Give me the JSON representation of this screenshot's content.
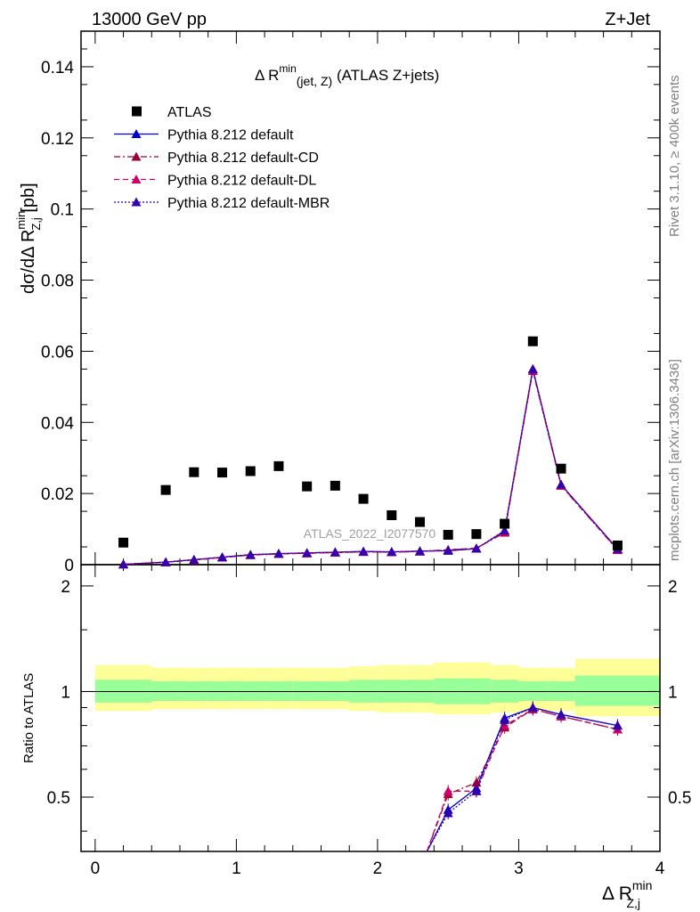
{
  "header": {
    "left": "13000 GeV pp",
    "right": "Z+Jet"
  },
  "side_text": {
    "rivet": "Rivet 3.1.10, ≥ 400k events",
    "mcplots": "mcplots.cern.ch [arXiv:1306.3436]"
  },
  "watermark": "ATLAS_2022_I2077570",
  "main_title": {
    "prefix": "Δ R",
    "sup": "min",
    "sub": "(jet, Z)",
    "suffix": " (ATLAS Z+jets)"
  },
  "ylabel_main": {
    "prefix": "dσ/dΔ R",
    "sup": "min",
    "sub": "Z,j",
    "suffix": " [pb]"
  },
  "ylabel_ratio": "Ratio to ATLAS",
  "xlabel": {
    "prefix": "Δ R",
    "sup": "min",
    "sub": "Z,j"
  },
  "colors": {
    "atlas": "#000000",
    "default": "#0000cc",
    "cd": "#990033",
    "dl": "#cc0066",
    "mbr": "#3300aa",
    "band_outer": "#ffff99",
    "band_inner": "#99ff99"
  },
  "chart_data": [
    {
      "type": "scatter",
      "panel": "main",
      "xlim": [
        -0.1,
        4.0
      ],
      "ylim": [
        0,
        0.15
      ],
      "yticks": [
        0,
        0.02,
        0.04,
        0.06,
        0.08,
        0.1,
        0.12,
        0.14
      ],
      "ytick_labels": [
        "0",
        "0.02",
        "0.04",
        "0.06",
        "0.08",
        "0.1",
        "0.12",
        "0.14"
      ],
      "x": [
        0.2,
        0.5,
        0.7,
        0.9,
        1.1,
        1.3,
        1.5,
        1.7,
        1.9,
        2.1,
        2.3,
        2.5,
        2.7,
        2.9,
        3.1,
        3.3,
        3.7
      ],
      "series": [
        {
          "name": "ATLAS",
          "style": "marker",
          "values": [
            0.0062,
            0.021,
            0.026,
            0.0259,
            0.0263,
            0.0277,
            0.022,
            0.0222,
            0.0185,
            0.0139,
            0.012,
            0.0084,
            0.0086,
            0.0115,
            0.0628,
            0.027,
            0.0054
          ]
        },
        {
          "name": "Pythia 8.212 default",
          "style": "solid",
          "values": [
            0.0001,
            0.0007,
            0.0014,
            0.0021,
            0.0028,
            0.0031,
            0.0033,
            0.0035,
            0.0037,
            0.0036,
            0.0038,
            0.0039,
            0.0045,
            0.0095,
            0.055,
            0.0225,
            0.0044
          ]
        },
        {
          "name": "Pythia 8.212 default-CD",
          "style": "dashdot",
          "values": [
            0.0001,
            0.0007,
            0.0013,
            0.002,
            0.0027,
            0.003,
            0.0032,
            0.0034,
            0.0036,
            0.0035,
            0.0037,
            0.0041,
            0.0046,
            0.009,
            0.0545,
            0.0222,
            0.0041
          ]
        },
        {
          "name": "Pythia 8.212 default-DL",
          "style": "dashed",
          "values": [
            0.0001,
            0.0007,
            0.0013,
            0.002,
            0.0027,
            0.003,
            0.0032,
            0.0034,
            0.0036,
            0.0035,
            0.0037,
            0.0042,
            0.0046,
            0.0092,
            0.0546,
            0.0223,
            0.0042
          ]
        },
        {
          "name": "Pythia 8.212 default-MBR",
          "style": "dotted",
          "values": [
            0.0001,
            0.0007,
            0.0014,
            0.0021,
            0.0028,
            0.0031,
            0.0033,
            0.0035,
            0.0037,
            0.0036,
            0.0038,
            0.004,
            0.0045,
            0.0096,
            0.055,
            0.0225,
            0.0044
          ]
        }
      ]
    },
    {
      "type": "line",
      "panel": "ratio",
      "xlim": [
        -0.1,
        4.0
      ],
      "ylim": [
        0.35,
        2.3
      ],
      "yscale": "log",
      "yticks": [
        0.5,
        1,
        2
      ],
      "ytick_labels": [
        "0.5",
        "1",
        "2"
      ],
      "xticks": [
        0,
        1,
        2,
        3,
        4
      ],
      "xtick_labels": [
        "0",
        "1",
        "2",
        "3",
        "4"
      ],
      "reference": 1,
      "band_edges": [
        0.0,
        0.4,
        0.6,
        0.8,
        1.0,
        1.2,
        1.4,
        1.6,
        1.8,
        2.0,
        2.2,
        2.4,
        2.6,
        2.8,
        3.0,
        3.2,
        3.4,
        4.0
      ],
      "band_outer": [
        [
          0.88,
          1.19
        ],
        [
          0.89,
          1.17
        ],
        [
          0.89,
          1.17
        ],
        [
          0.89,
          1.17
        ],
        [
          0.89,
          1.17
        ],
        [
          0.89,
          1.17
        ],
        [
          0.89,
          1.17
        ],
        [
          0.89,
          1.17
        ],
        [
          0.88,
          1.18
        ],
        [
          0.87,
          1.19
        ],
        [
          0.87,
          1.19
        ],
        [
          0.86,
          1.21
        ],
        [
          0.86,
          1.21
        ],
        [
          0.87,
          1.19
        ],
        [
          0.88,
          1.17
        ],
        [
          0.88,
          1.17
        ],
        [
          0.85,
          1.24
        ]
      ],
      "band_inner": [
        [
          0.93,
          1.08
        ],
        [
          0.94,
          1.07
        ],
        [
          0.94,
          1.07
        ],
        [
          0.94,
          1.07
        ],
        [
          0.94,
          1.07
        ],
        [
          0.94,
          1.07
        ],
        [
          0.94,
          1.07
        ],
        [
          0.94,
          1.07
        ],
        [
          0.93,
          1.08
        ],
        [
          0.93,
          1.08
        ],
        [
          0.93,
          1.08
        ],
        [
          0.92,
          1.09
        ],
        [
          0.92,
          1.09
        ],
        [
          0.93,
          1.08
        ],
        [
          0.94,
          1.07
        ],
        [
          0.94,
          1.07
        ],
        [
          0.91,
          1.11
        ]
      ],
      "x": [
        2.5,
        2.7,
        2.9,
        3.1,
        3.3,
        3.7
      ],
      "series": [
        {
          "name": "Pythia 8.212 default",
          "style": "solid",
          "values": [
            0.46,
            0.53,
            0.84,
            0.9,
            0.86,
            0.8
          ]
        },
        {
          "name": "Pythia 8.212 default-CD",
          "style": "dashdot",
          "values": [
            0.51,
            0.55,
            0.79,
            0.89,
            0.85,
            0.78
          ]
        },
        {
          "name": "Pythia 8.212 default-DL",
          "style": "dashed",
          "values": [
            0.52,
            0.52,
            0.8,
            0.89,
            0.85,
            0.78
          ]
        },
        {
          "name": "Pythia 8.212 default-MBR",
          "style": "dotted",
          "values": [
            0.45,
            0.52,
            0.83,
            0.9,
            0.86,
            0.8
          ]
        }
      ]
    }
  ]
}
